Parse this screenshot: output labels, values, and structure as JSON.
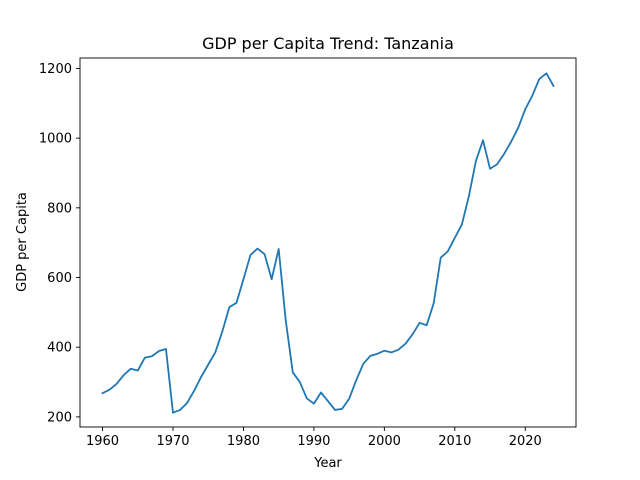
{
  "chart_data": {
    "type": "line",
    "title": "GDP per Capita Trend: Tanzania",
    "xlabel": "Year",
    "ylabel": "GDP per Capita",
    "xlim": [
      1956.8,
      2027.2
    ],
    "ylim": [
      171,
      1230
    ],
    "xticks": [
      1960,
      1970,
      1980,
      1990,
      2000,
      2010,
      2020
    ],
    "yticks": [
      200,
      400,
      600,
      800,
      1000,
      1200
    ],
    "grid": false,
    "legend": "none",
    "line_color": "#1f77b4",
    "series": [
      {
        "x": [
          1960,
          1961,
          1962,
          1963,
          1964,
          1965,
          1966,
          1967,
          1968,
          1969,
          1970,
          1971,
          1972,
          1973,
          1974,
          1975,
          1976,
          1977,
          1978,
          1979,
          1980,
          1981,
          1982,
          1983,
          1984,
          1985,
          1986,
          1987,
          1988,
          1989,
          1990,
          1991,
          1992,
          1993,
          1994,
          1995,
          1996,
          1997,
          1998,
          1999,
          2000,
          2001,
          2002,
          2003,
          2004,
          2005,
          2006,
          2007,
          2008,
          2009,
          2010,
          2011,
          2012,
          2013,
          2014,
          2015,
          2016,
          2017,
          2018,
          2019,
          2020,
          2021,
          2022,
          2023,
          2024
        ],
        "values": [
          268,
          278,
          295,
          320,
          338,
          333,
          370,
          374,
          389,
          395,
          212,
          220,
          240,
          275,
          315,
          350,
          385,
          445,
          515,
          527,
          595,
          665,
          683,
          667,
          595,
          682,
          477,
          328,
          300,
          253,
          238,
          270,
          245,
          220,
          223,
          252,
          305,
          352,
          375,
          381,
          390,
          385,
          393,
          410,
          437,
          470,
          463,
          526,
          657,
          675,
          714,
          752,
          834,
          935,
          994,
          912,
          925,
          955,
          990,
          1030,
          1083,
          1122,
          1170,
          1186,
          1150
        ]
      }
    ]
  }
}
